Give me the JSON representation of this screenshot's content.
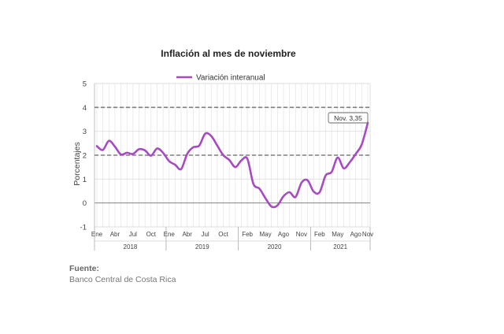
{
  "chart_data": {
    "type": "line",
    "title": "Inflación al mes de noviembre",
    "xlabel": "",
    "ylabel": "Porcentajes",
    "ylim": [
      -1,
      5
    ],
    "yticks": [
      "5",
      "4",
      "3",
      "2",
      "1",
      "0",
      "-1"
    ],
    "grid": true,
    "legend_position": "top",
    "series": [
      {
        "name": "Variación interanual",
        "color": "#a64bc1",
        "values": [
          2.38,
          2.22,
          2.6,
          2.36,
          2.03,
          2.1,
          2.05,
          2.25,
          2.2,
          1.98,
          2.28,
          2.1,
          1.75,
          1.6,
          1.42,
          2.05,
          2.33,
          2.4,
          2.9,
          2.8,
          2.4,
          2.0,
          1.8,
          1.5,
          1.78,
          1.85,
          0.8,
          0.6,
          0.2,
          -0.15,
          -0.1,
          0.28,
          0.45,
          0.25,
          0.85,
          0.95,
          0.48,
          0.45,
          1.15,
          1.3,
          1.9,
          1.45,
          1.7,
          2.05,
          2.45,
          3.35
        ]
      }
    ],
    "reference_lines": [
      4,
      2
    ],
    "annotation": "Nov. 3,35",
    "month_labels": [
      "Ene",
      "Abr",
      "Jul",
      "Oct",
      "Ene",
      "Abr",
      "Jul",
      "Oct",
      "Feb",
      "May",
      "Ago",
      "Nov",
      "Feb",
      "May",
      "Ago",
      "Nov"
    ],
    "year_labels": [
      "2018",
      "2019",
      "2020",
      "2021"
    ]
  },
  "source": {
    "label": "Fuente:",
    "text": "Banco Central de Costa Rica"
  }
}
